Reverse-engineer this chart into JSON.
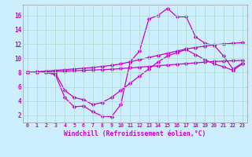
{
  "xlabel": "Windchill (Refroidissement éolien,°C)",
  "bg_color": "#cceeff",
  "grid_color": "#b0ddd0",
  "line_color": "#cc00cc",
  "marker": "D",
  "markersize": 2.5,
  "linewidth": 0.9,
  "x_ticks": [
    0,
    1,
    2,
    3,
    4,
    5,
    6,
    7,
    8,
    9,
    10,
    11,
    12,
    13,
    14,
    15,
    16,
    17,
    18,
    19,
    20,
    21,
    22,
    23
  ],
  "y_ticks": [
    2,
    4,
    6,
    8,
    10,
    12,
    14,
    16
  ],
  "xlim": [
    -0.5,
    23.5
  ],
  "ylim": [
    1.0,
    17.5
  ],
  "series": [
    [
      8.0,
      8.0,
      8.0,
      7.7,
      4.5,
      3.2,
      3.3,
      2.5,
      1.9,
      1.8,
      3.5,
      9.5,
      11.0,
      15.5,
      16.0,
      17.0,
      15.8,
      15.8,
      13.0,
      12.1,
      11.8,
      10.3,
      8.5,
      9.3
    ],
    [
      8.0,
      8.05,
      8.1,
      8.15,
      8.2,
      8.25,
      8.3,
      8.35,
      8.4,
      8.45,
      8.55,
      8.65,
      8.75,
      8.85,
      8.95,
      9.05,
      9.15,
      9.25,
      9.35,
      9.45,
      9.55,
      9.6,
      9.65,
      9.7
    ],
    [
      8.0,
      8.1,
      8.2,
      8.3,
      8.4,
      8.5,
      8.6,
      8.7,
      8.85,
      9.0,
      9.2,
      9.5,
      9.8,
      10.1,
      10.4,
      10.7,
      11.0,
      11.3,
      11.5,
      11.7,
      11.9,
      12.0,
      12.1,
      12.2
    ],
    [
      8.0,
      8.0,
      8.0,
      7.9,
      5.5,
      4.5,
      4.2,
      3.5,
      3.8,
      4.5,
      5.5,
      6.5,
      7.5,
      8.5,
      9.5,
      10.3,
      10.8,
      11.2,
      10.5,
      9.8,
      9.2,
      8.8,
      8.3,
      9.2
    ]
  ]
}
